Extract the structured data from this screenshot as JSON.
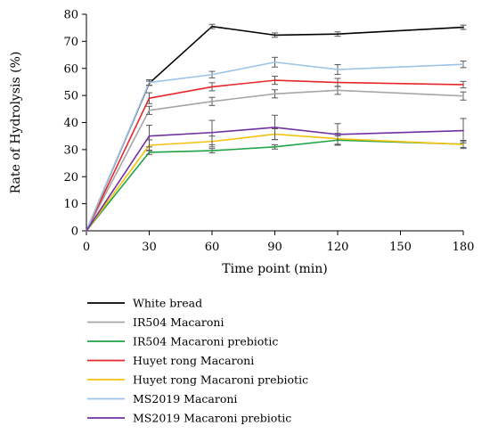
{
  "chart_data": {
    "type": "line",
    "xlabel": "Time point (min)",
    "ylabel": "Rate of Hydrolysis (%)",
    "x": [
      0,
      30,
      60,
      90,
      120,
      180
    ],
    "xticks": [
      0,
      30,
      60,
      90,
      120,
      150,
      180
    ],
    "yticks": [
      0,
      10,
      20,
      30,
      40,
      50,
      60,
      70,
      80
    ],
    "xlim": [
      0,
      180
    ],
    "ylim": [
      0,
      80
    ],
    "grid": false,
    "legend_position": "bottom",
    "series": [
      {
        "name": "White bread",
        "color": "#000000",
        "values": [
          0,
          54.5,
          75.5,
          72.3,
          72.7,
          75.2
        ],
        "errors": [
          0,
          0.8,
          0.8,
          0.8,
          0.8,
          0.8
        ]
      },
      {
        "name": "IR504 Macaroni",
        "color": "#a6a6a6",
        "values": [
          0,
          44.5,
          47.8,
          50.6,
          51.9,
          49.8
        ],
        "errors": [
          0,
          1.5,
          1.5,
          1.5,
          1.5,
          1.5
        ]
      },
      {
        "name": "IR504 Macaroni prebiotic",
        "color": "#1fa345",
        "values": [
          0,
          29.0,
          29.6,
          31.0,
          33.5,
          32.0
        ],
        "errors": [
          0,
          0.8,
          0.8,
          0.8,
          1.6,
          1.2
        ]
      },
      {
        "name": "Huyet rong Macaroni",
        "color": "#e8262b",
        "values": [
          0,
          49.0,
          53.2,
          55.6,
          54.8,
          54.0
        ],
        "errors": [
          0,
          2.0,
          1.5,
          1.5,
          1.5,
          1.2
        ]
      },
      {
        "name": "Huyet rong Macaroni prebiotic",
        "color": "#f5c20c",
        "values": [
          0,
          31.6,
          33.0,
          35.7,
          34.0,
          31.9
        ],
        "errors": [
          0,
          2.0,
          2.0,
          2.0,
          2.0,
          1.5
        ]
      },
      {
        "name": "MS2019 Macaroni",
        "color": "#9dc3e6",
        "values": [
          0,
          54.8,
          57.7,
          62.3,
          59.6,
          61.5
        ],
        "errors": [
          0,
          1.0,
          1.2,
          1.8,
          1.8,
          1.2
        ]
      },
      {
        "name": "MS2019 Macaroni prebiotic",
        "color": "#7030a0",
        "values": [
          0,
          35.0,
          36.3,
          38.2,
          35.6,
          37.0
        ],
        "errors": [
          0,
          4.0,
          4.5,
          4.5,
          4.0,
          4.5
        ]
      }
    ]
  }
}
